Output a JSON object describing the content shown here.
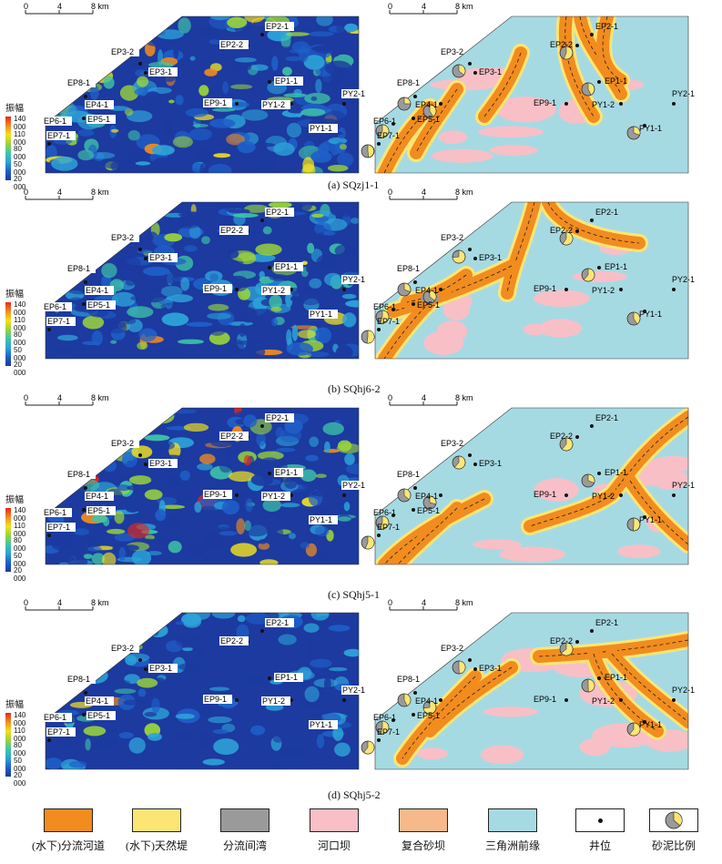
{
  "scale": {
    "ticks": [
      "0",
      "4",
      "8 km"
    ]
  },
  "colorbar": {
    "title": "振幅",
    "labels": [
      "140 000",
      "110 000",
      "80 000",
      "50 000",
      "20 000"
    ]
  },
  "panels": [
    {
      "caption": "(a) SQzj1-1"
    },
    {
      "caption": "(b) SQhj6-2"
    },
    {
      "caption": "(c) SQhj5-1"
    },
    {
      "caption": "(d) SQhj5-2"
    }
  ],
  "wells": [
    "EP2-1",
    "EP2-2",
    "EP3-2",
    "EP3-1",
    "EP1-1",
    "EP8-1",
    "EP4-1",
    "EP9-1",
    "PY1-2",
    "PY2-1",
    "EP6-1",
    "EP5-1",
    "PY1-1",
    "EP7-1"
  ],
  "legend": [
    {
      "label": "(水下)分流河道",
      "color": "#f28c1e"
    },
    {
      "label": "(水下)天然堤",
      "color": "#fbe675"
    },
    {
      "label": "分流间湾",
      "color": "#9a9a9a"
    },
    {
      "label": "河口坝",
      "color": "#f8bfc7"
    },
    {
      "label": "复合砂坝",
      "color": "#f6b98c"
    },
    {
      "label": "三角洲前缘",
      "color": "#a6dae3"
    },
    {
      "label": "井位",
      "color": "#ffffff"
    },
    {
      "label": "砂泥比例",
      "color": "#ffffff"
    }
  ],
  "colors": {
    "front": "#a6dae3",
    "channel": "#f28c1e",
    "levee": "#fbe675",
    "bar": "#f8bfc7",
    "bay": "#9a9a9a",
    "seis_bg": "#1c3aa0"
  }
}
